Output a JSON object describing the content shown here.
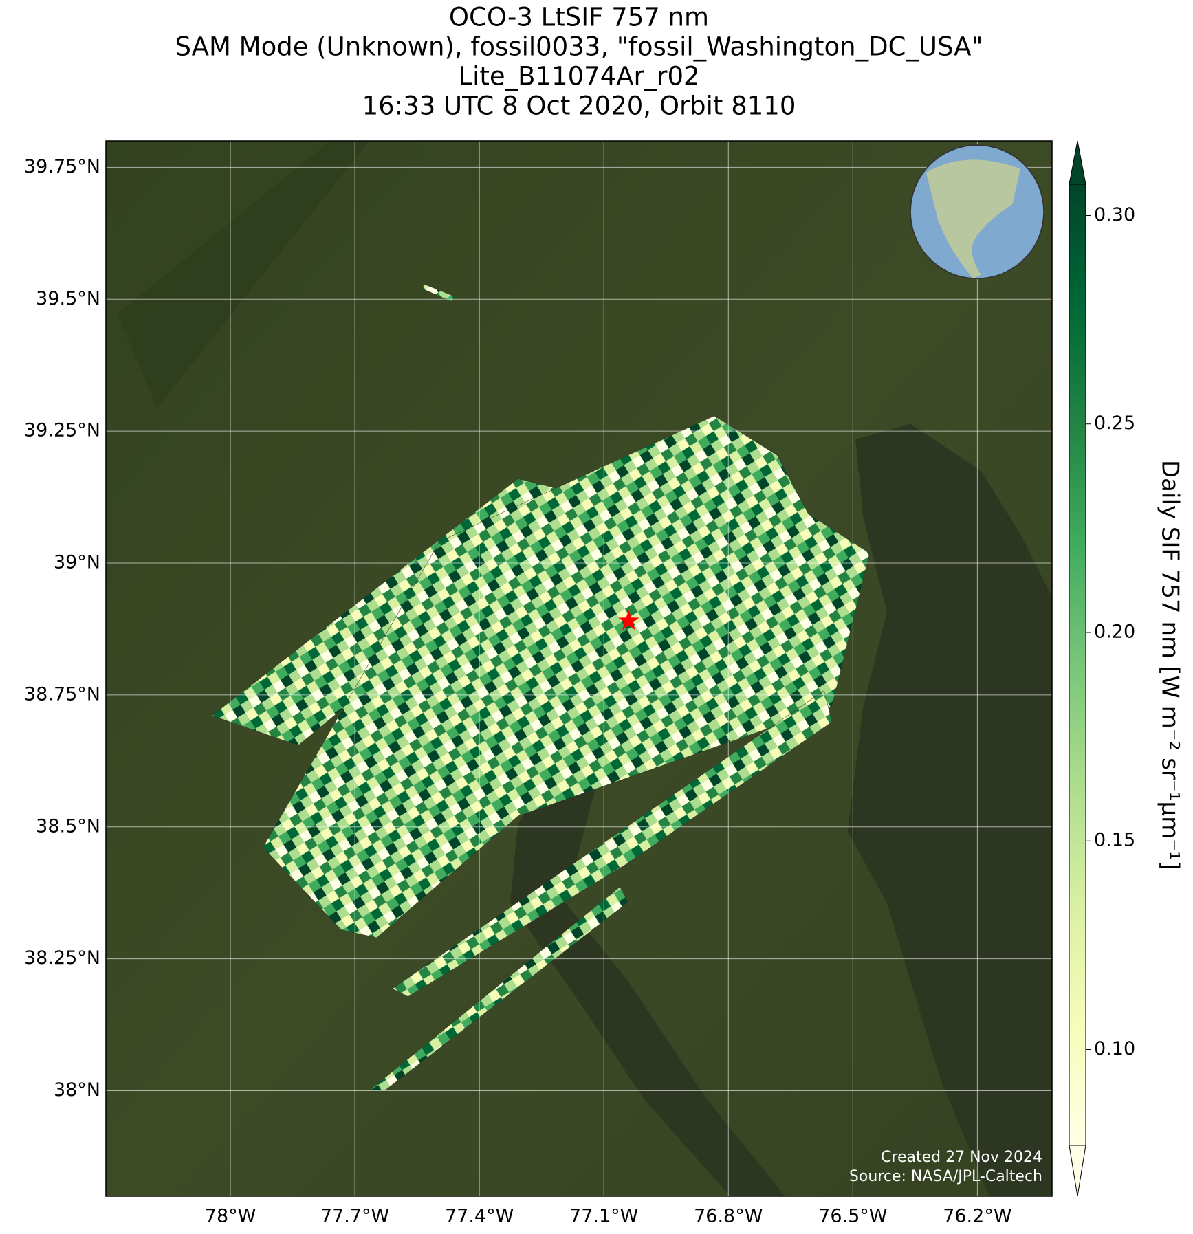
{
  "chart_data": {
    "type": "map",
    "title_lines": [
      "OCO-3 LtSIF 757 nm",
      "SAM Mode (Unknown), fossil0033, \"fossil_Washington_DC_USA\"",
      "Lite_B11074Ar_r02",
      "16:33 UTC 8 Oct 2020, Orbit 8110"
    ],
    "xlim": [
      -78.3,
      -76.02
    ],
    "ylim": [
      37.8,
      39.8
    ],
    "xticks": [
      {
        "value": -78,
        "label": "78°W"
      },
      {
        "value": -77.7,
        "label": "77.7°W"
      },
      {
        "value": -77.4,
        "label": "77.4°W"
      },
      {
        "value": -77.1,
        "label": "77.1°W"
      },
      {
        "value": -76.8,
        "label": "76.8°W"
      },
      {
        "value": -76.5,
        "label": "76.5°W"
      },
      {
        "value": -76.2,
        "label": "76.2°W"
      }
    ],
    "yticks": [
      {
        "value": 38,
        "label": "38°N"
      },
      {
        "value": 38.25,
        "label": "38.25°N"
      },
      {
        "value": 38.5,
        "label": "38.5°N"
      },
      {
        "value": 38.75,
        "label": "38.75°N"
      },
      {
        "value": 39,
        "label": "39°N"
      },
      {
        "value": 39.25,
        "label": "39.25°N"
      },
      {
        "value": 39.5,
        "label": "39.5°N"
      },
      {
        "value": 39.75,
        "label": "39.75°N"
      }
    ],
    "grid": true,
    "site_marker": {
      "lon": -77.04,
      "lat": 38.89,
      "color": "#ff0000"
    },
    "colorbar": {
      "label": "Daily SIF 757 nm [W m⁻² sr⁻¹μm⁻¹]",
      "clim": [
        0.077,
        0.3075
      ],
      "ticks": [
        {
          "value": 0.1,
          "label": "0.10"
        },
        {
          "value": 0.15,
          "label": "0.15"
        },
        {
          "value": 0.2,
          "label": "0.20"
        },
        {
          "value": 0.25,
          "label": "0.25"
        },
        {
          "value": 0.3,
          "label": "0.30"
        }
      ],
      "colors": [
        "#ffffe5",
        "#f7fcb9",
        "#d9f0a3",
        "#addd8e",
        "#78c679",
        "#41ab5d",
        "#238443",
        "#006837",
        "#004529"
      ]
    },
    "credits": [
      "Created 27 Nov 2024",
      "Source: NASA/JPL-Caltech"
    ]
  }
}
